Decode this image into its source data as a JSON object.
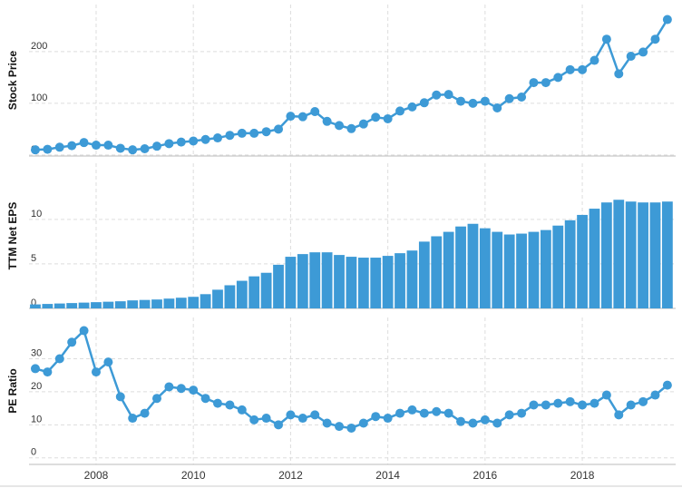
{
  "chart_data": [
    {
      "type": "line",
      "y_label": "Stock Price",
      "color": "#3d9ad6",
      "grid": true,
      "x": [
        2006.75,
        2007,
        2007.25,
        2007.5,
        2007.75,
        2008,
        2008.25,
        2008.5,
        2008.75,
        2009,
        2009.25,
        2009.5,
        2009.75,
        2010,
        2010.25,
        2010.5,
        2010.75,
        2011,
        2011.25,
        2011.5,
        2011.75,
        2012,
        2012.25,
        2012.5,
        2012.75,
        2013,
        2013.25,
        2013.5,
        2013.75,
        2014,
        2014.25,
        2014.5,
        2014.75,
        2015,
        2015.25,
        2015.5,
        2015.75,
        2016,
        2016.25,
        2016.5,
        2016.75,
        2017,
        2017.25,
        2017.5,
        2017.75,
        2018,
        2018.25,
        2018.5,
        2018.75,
        2019,
        2019.25,
        2019.5,
        2019.75
      ],
      "values": [
        10,
        11,
        15,
        18,
        24,
        19,
        19,
        13,
        10,
        12,
        17,
        22,
        25,
        27,
        30,
        33,
        38,
        42,
        42,
        45,
        50,
        75,
        74,
        84,
        65,
        57,
        51,
        60,
        73,
        70,
        85,
        93,
        101,
        116,
        117,
        104,
        100,
        104,
        91,
        109,
        112,
        140,
        140,
        150,
        165,
        165,
        183,
        224,
        157,
        191,
        199,
        224,
        262
      ],
      "xlim": [
        2006.62,
        2019.92
      ],
      "xticks": [
        2008,
        2010,
        2012,
        2014,
        2016,
        2018
      ],
      "ylim": [
        -2,
        291
      ],
      "yticks": [
        0,
        100,
        200
      ]
    },
    {
      "type": "bar",
      "y_label": "TTM Net EPS",
      "color": "#3d9ad6",
      "grid": true,
      "x": [
        2006.75,
        2007,
        2007.25,
        2007.5,
        2007.75,
        2008,
        2008.25,
        2008.5,
        2008.75,
        2009,
        2009.25,
        2009.5,
        2009.75,
        2010,
        2010.25,
        2010.5,
        2010.75,
        2011,
        2011.25,
        2011.5,
        2011.75,
        2012,
        2012.25,
        2012.5,
        2012.75,
        2013,
        2013.25,
        2013.5,
        2013.75,
        2014,
        2014.25,
        2014.5,
        2014.75,
        2015,
        2015.25,
        2015.5,
        2015.75,
        2016,
        2016.25,
        2016.5,
        2016.75,
        2017,
        2017.25,
        2017.5,
        2017.75,
        2018,
        2018.25,
        2018.5,
        2018.75,
        2019,
        2019.25,
        2019.5,
        2019.75
      ],
      "values": [
        0.45,
        0.5,
        0.55,
        0.6,
        0.65,
        0.7,
        0.75,
        0.8,
        0.9,
        0.95,
        1.0,
        1.1,
        1.2,
        1.3,
        1.6,
        2.1,
        2.6,
        3.1,
        3.6,
        4.0,
        4.9,
        5.8,
        6.1,
        6.3,
        6.3,
        6.0,
        5.8,
        5.7,
        5.7,
        5.9,
        6.2,
        6.5,
        7.5,
        8.1,
        8.6,
        9.2,
        9.5,
        9.0,
        8.6,
        8.3,
        8.4,
        8.6,
        8.8,
        9.3,
        9.9,
        10.5,
        11.2,
        11.9,
        12.2,
        12.0,
        11.9,
        11.9,
        12.0
      ],
      "xlim": [
        2006.62,
        2019.92
      ],
      "xticks": [
        2008,
        2010,
        2012,
        2014,
        2016,
        2018
      ],
      "ylim": [
        0,
        16.3
      ],
      "yticks": [
        0,
        5,
        10
      ]
    },
    {
      "type": "line",
      "y_label": "PE Ratio",
      "color": "#3d9ad6",
      "grid": true,
      "x": [
        2006.75,
        2007,
        2007.25,
        2007.5,
        2007.75,
        2008,
        2008.25,
        2008.5,
        2008.75,
        2009,
        2009.25,
        2009.5,
        2009.75,
        2010,
        2010.25,
        2010.5,
        2010.75,
        2011,
        2011.25,
        2011.5,
        2011.75,
        2012,
        2012.25,
        2012.5,
        2012.75,
        2013,
        2013.25,
        2013.5,
        2013.75,
        2014,
        2014.25,
        2014.5,
        2014.75,
        2015,
        2015.25,
        2015.5,
        2015.75,
        2016,
        2016.25,
        2016.5,
        2016.75,
        2017,
        2017.25,
        2017.5,
        2017.75,
        2018,
        2018.25,
        2018.5,
        2018.75,
        2019,
        2019.25,
        2019.5,
        2019.75
      ],
      "values": [
        27,
        26,
        30,
        35,
        38.5,
        26,
        29,
        18.5,
        12,
        13.5,
        18,
        21.5,
        21,
        20.5,
        18,
        16.5,
        16,
        14.5,
        11.5,
        12,
        10,
        13,
        12,
        13,
        10.5,
        9.5,
        9,
        10.5,
        12.5,
        12,
        13.5,
        14.5,
        13.5,
        14,
        13.5,
        11,
        10.5,
        11.5,
        10.5,
        13,
        13.5,
        16,
        16,
        16.5,
        17,
        16,
        16.5,
        19,
        13,
        16,
        17,
        19,
        22
      ],
      "xlim": [
        2006.62,
        2019.92
      ],
      "xticks": [
        2008,
        2010,
        2012,
        2014,
        2016,
        2018
      ],
      "ylim": [
        -2,
        42.5
      ],
      "yticks": [
        0,
        10,
        20,
        30
      ]
    }
  ]
}
